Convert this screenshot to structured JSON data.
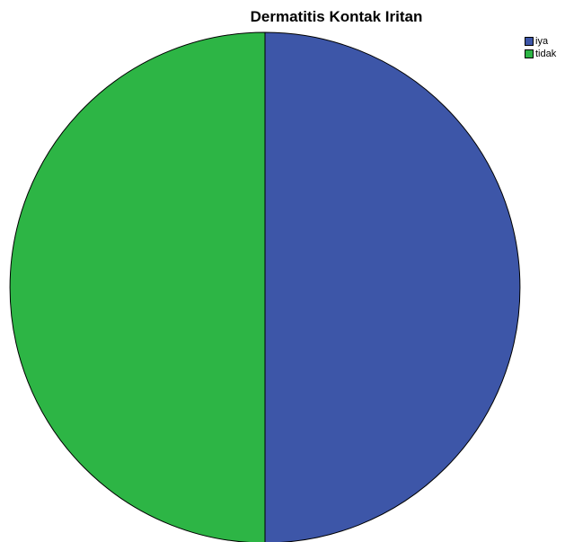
{
  "chart_data": {
    "type": "pie",
    "title": "Dermatitis Kontak Iritan",
    "slices": [
      {
        "label": "iya",
        "value": 50,
        "color": "#3d56a8"
      },
      {
        "label": "tidak",
        "value": 50,
        "color": "#2db545"
      }
    ],
    "legend_position": "top-right"
  }
}
